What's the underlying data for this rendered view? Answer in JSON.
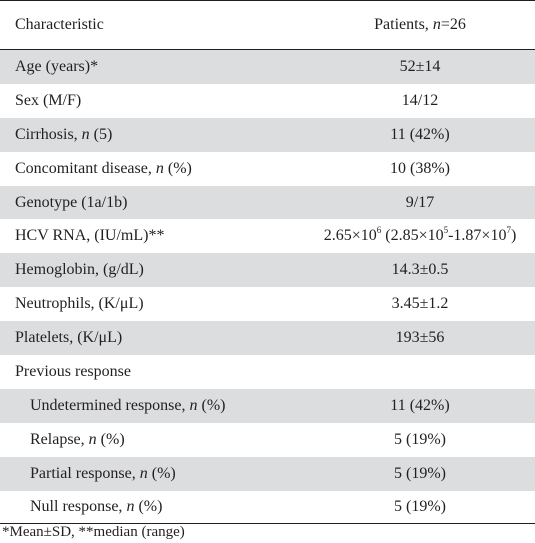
{
  "header": {
    "col1": "Characteristic",
    "col2_prefix": "Patients, ",
    "col2_n": "n",
    "col2_suffix": "=26"
  },
  "rows": [
    {
      "label": "Age (years)*",
      "value": "52±14"
    },
    {
      "label": "Sex (M/F)",
      "value": "14/12"
    },
    {
      "label_pre": "Cirrhosis, ",
      "label_n": "n",
      "label_post": " (5)",
      "value": "11 (42%)"
    },
    {
      "label_pre": "Concomitant disease, ",
      "label_n": "n",
      "label_post": " (%)",
      "value": "10 (38%)"
    },
    {
      "label": "Genotype (1a/1b)",
      "value": "9/17"
    },
    {
      "label": "HCV RNA, (IU/mL)**",
      "value_base1": "2.65×10",
      "value_exp1": "6",
      "value_mid": " (2.85×10",
      "value_exp2": "5",
      "value_mid2": "-1.87×10",
      "value_exp3": "7",
      "value_end": ")"
    },
    {
      "label": "Hemoglobin, (g/dL)",
      "value": "14.3±0.5"
    },
    {
      "label": "Neutrophils, (K/μL)",
      "value": "3.45±1.2"
    },
    {
      "label": "Platelets, (K/μL)",
      "value": "193±56"
    },
    {
      "label": "Previous response",
      "value": ""
    },
    {
      "label_pre": "Undetermined response, ",
      "label_n": "n",
      "label_post": " (%)",
      "value": "11 (42%)"
    },
    {
      "label_pre": "Relapse, ",
      "label_n": "n",
      "label_post": " (%)",
      "value": "5 (19%)"
    },
    {
      "label_pre": "Partial response, ",
      "label_n": "n",
      "label_post": " (%)",
      "value": "5 (19%)"
    },
    {
      "label_pre": "Null response, ",
      "label_n": "n",
      "label_post": " (%)",
      "value": "5 (19%)"
    }
  ],
  "footnote": "*Mean±SD, **median (range)",
  "colors": {
    "shade": "#dcdddf",
    "text": "#231f20"
  }
}
